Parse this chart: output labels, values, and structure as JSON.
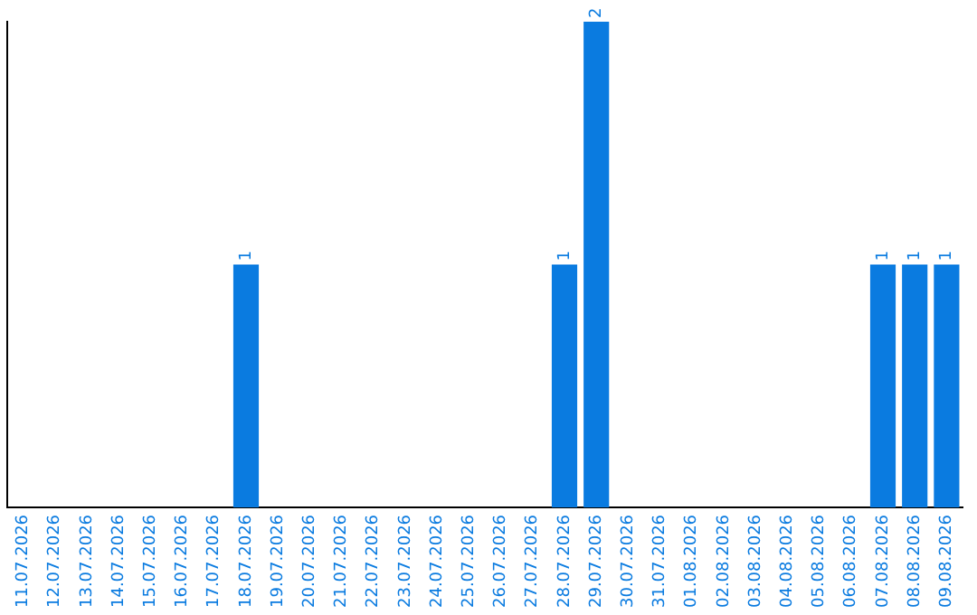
{
  "chart_data": {
    "type": "bar",
    "categories": [
      "11.07.2026",
      "12.07.2026",
      "13.07.2026",
      "14.07.2026",
      "15.07.2026",
      "16.07.2026",
      "17.07.2026",
      "18.07.2026",
      "19.07.2026",
      "20.07.2026",
      "21.07.2026",
      "22.07.2026",
      "23.07.2026",
      "24.07.2026",
      "25.07.2026",
      "26.07.2026",
      "27.07.2026",
      "28.07.2026",
      "29.07.2026",
      "30.07.2026",
      "31.07.2026",
      "01.08.2026",
      "02.08.2026",
      "03.08.2026",
      "04.08.2026",
      "05.08.2026",
      "06.08.2026",
      "07.08.2026",
      "08.08.2026",
      "09.08.2026"
    ],
    "values": [
      0,
      0,
      0,
      0,
      0,
      0,
      0,
      1,
      0,
      0,
      0,
      0,
      0,
      0,
      0,
      0,
      0,
      1,
      2,
      0,
      0,
      0,
      0,
      0,
      0,
      0,
      0,
      1,
      1,
      1
    ],
    "value_labels": [
      null,
      null,
      null,
      null,
      null,
      null,
      null,
      "1",
      null,
      null,
      null,
      null,
      null,
      null,
      null,
      null,
      null,
      "1",
      "2",
      null,
      null,
      null,
      null,
      null,
      null,
      null,
      null,
      "1",
      "1",
      "1"
    ],
    "color": "#0a7be0",
    "grid": false,
    "legend": false
  }
}
